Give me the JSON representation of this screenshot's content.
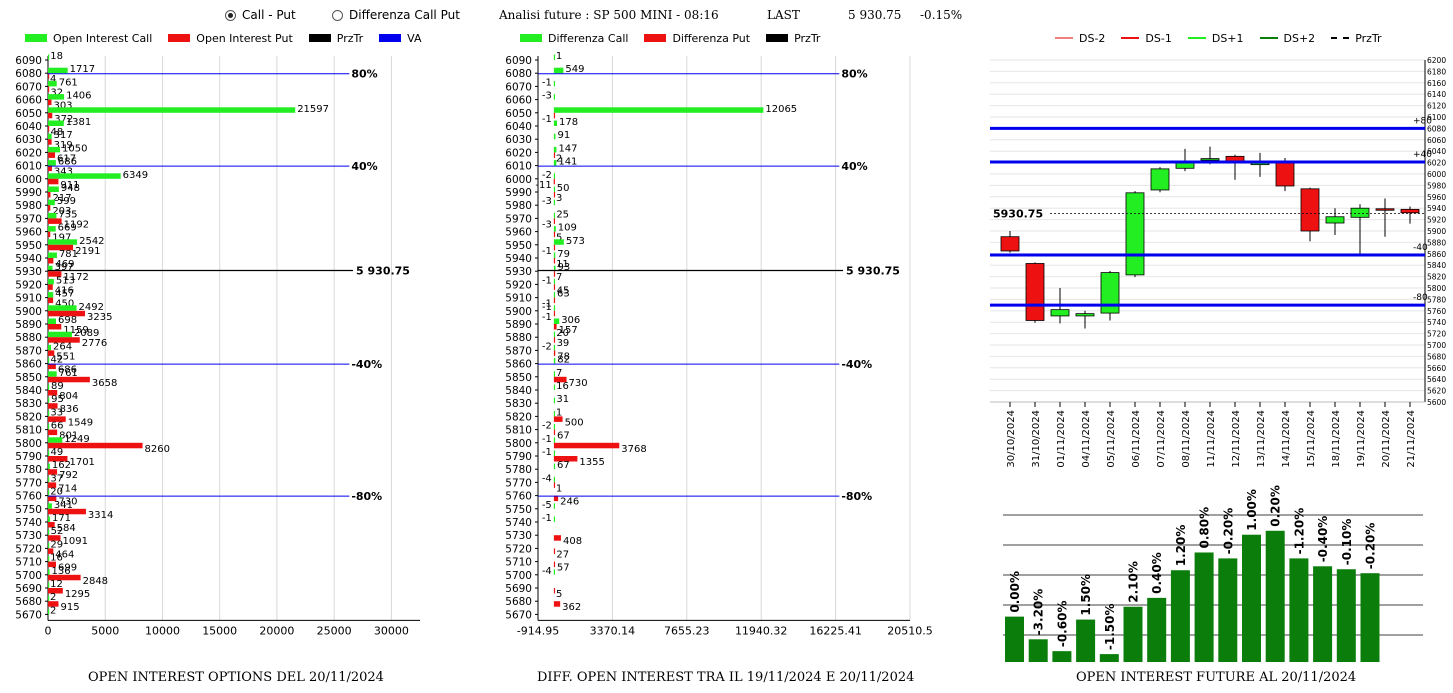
{
  "header": {
    "radio_call_put": "Call - Put",
    "radio_diff": "Differenza Call Put",
    "title": "Analisi future : SP 500 MINI - 08:16",
    "last_label": "LAST",
    "last_value": "5 930.75",
    "last_change": "-0.15%"
  },
  "colors": {
    "green": "#22ee22",
    "red": "#ee1111",
    "blue": "#0000ee",
    "dark_green": "#0a7d0a"
  },
  "legend1": [
    {
      "label": "Open Interest Call",
      "color": "#22ee22"
    },
    {
      "label": "Open Interest Put",
      "color": "#ee1111"
    },
    {
      "label": "PrzTr",
      "color": "#000000"
    },
    {
      "label": "VA",
      "color": "#0000ee"
    }
  ],
  "legend2": [
    {
      "label": "Differenza Call",
      "color": "#22ee22"
    },
    {
      "label": "Differenza Put",
      "color": "#ee1111"
    },
    {
      "label": "PrzTr",
      "color": "#000000"
    }
  ],
  "legend3": [
    {
      "label": "DS-2",
      "color": "#f08080",
      "style": "line"
    },
    {
      "label": "DS-1",
      "color": "#ee1111",
      "style": "line"
    },
    {
      "label": "DS+1",
      "color": "#22ee22",
      "style": "line"
    },
    {
      "label": "DS+2",
      "color": "#0a7d0a",
      "style": "line"
    },
    {
      "label": "PrzTr",
      "color": "#000000",
      "style": "dash"
    }
  ],
  "captions": {
    "c1": "OPEN INTEREST OPTIONS DEL 20/11/2024",
    "c2": "DIFF. OPEN INTEREST TRA IL 19/11/2024 E 20/11/2024",
    "c3": "OPEN INTEREST FUTURE AL 20/11/2024"
  },
  "chart_data": [
    {
      "type": "bar",
      "orientation": "horizontal",
      "strikes": [
        6090,
        6080,
        6070,
        6060,
        6050,
        6040,
        6030,
        6020,
        6010,
        6000,
        5990,
        5980,
        5970,
        5960,
        5950,
        5940,
        5930,
        5920,
        5910,
        5900,
        5890,
        5880,
        5870,
        5860,
        5850,
        5840,
        5830,
        5820,
        5810,
        5800,
        5790,
        5780,
        5770,
        5760,
        5750,
        5740,
        5730,
        5720,
        5710,
        5700,
        5690,
        5680,
        5670
      ],
      "series": [
        {
          "name": "Open Interest Call",
          "values": [
            18,
            1717,
            761,
            1406,
            21597,
            1381,
            317,
            1050,
            686,
            6349,
            948,
            599,
            735,
            669,
            2542,
            781,
            397,
            513,
            457,
            2492,
            698,
            2089,
            264,
            42,
            761,
            89,
            95,
            33,
            66,
            1249,
            49,
            162,
            37,
            20,
            341,
            171,
            52,
            29,
            16,
            136,
            12,
            2,
            2
          ]
        },
        {
          "name": "Open Interest Put",
          "values": [
            null,
            4,
            32,
            303,
            372,
            48,
            319,
            617,
            343,
            911,
            217,
            203,
            1192,
            197,
            2191,
            469,
            1172,
            416,
            450,
            3235,
            1159,
            2776,
            551,
            686,
            3658,
            804,
            836,
            1549,
            801,
            8260,
            1701,
            792,
            714,
            730,
            3314,
            584,
            1091,
            464,
            699,
            2848,
            1295,
            915,
            null
          ]
        }
      ],
      "price_line": {
        "strike": 5930.75,
        "label": "5 930.75"
      },
      "va_lines": [
        {
          "strike": 6080,
          "label": "80%"
        },
        {
          "strike": 6010,
          "label": "40%"
        },
        {
          "strike": 5860,
          "label": "-40%"
        },
        {
          "strike": 5760,
          "label": "-80%"
        }
      ],
      "xticks": [
        "0",
        "5000",
        "10000",
        "15000",
        "20000",
        "25000",
        "30000"
      ],
      "xlim": [
        0,
        32500
      ]
    },
    {
      "type": "bar",
      "orientation": "horizontal",
      "strikes": [
        6090,
        6080,
        6070,
        6060,
        6050,
        6040,
        6030,
        6020,
        6010,
        6000,
        5990,
        5980,
        5970,
        5960,
        5950,
        5940,
        5930,
        5920,
        5910,
        5900,
        5890,
        5880,
        5870,
        5860,
        5850,
        5840,
        5830,
        5820,
        5810,
        5800,
        5790,
        5780,
        5770,
        5760,
        5750,
        5740,
        5730,
        5720,
        5710,
        5700,
        5690,
        5680,
        5670
      ],
      "series": [
        {
          "name": "Differenza Call",
          "values": [
            1,
            549,
            -1,
            -3,
            12065,
            178,
            91,
            147,
            141,
            -2,
            50,
            -3,
            25,
            109,
            573,
            79,
            93,
            -1,
            63,
            -1,
            306,
            20,
            -2,
            82,
            7,
            16,
            31,
            1,
            -2,
            -1,
            -1,
            67,
            -4,
            null,
            -5,
            -1,
            null,
            null,
            null,
            -4,
            null,
            null,
            null
          ]
        },
        {
          "name": "Differenza Put",
          "values": [
            null,
            null,
            null,
            null,
            -1,
            null,
            null,
            2,
            null,
            -11,
            3,
            null,
            -3,
            5,
            -1,
            11,
            7,
            45,
            -1,
            -1,
            157,
            39,
            78,
            null,
            730,
            null,
            null,
            500,
            67,
            3768,
            1355,
            null,
            1,
            246,
            null,
            null,
            408,
            27,
            57,
            null,
            5,
            362,
            null
          ]
        }
      ],
      "price_line": {
        "strike": 5930.75,
        "label": "5 930.75"
      },
      "va_lines": [
        {
          "strike": 6080,
          "label": "80%"
        },
        {
          "strike": 6010,
          "label": "40%"
        },
        {
          "strike": 5860,
          "label": "-40%"
        },
        {
          "strike": 5760,
          "label": "-80%"
        }
      ],
      "xticks": [
        "-914.95",
        "3370.14",
        "7655.23",
        "11940.32",
        "16225.41",
        "20510.5"
      ],
      "xlim": [
        -914.95,
        20510.5
      ]
    },
    {
      "type": "candlestick",
      "dates": [
        "30/10/2024",
        "31/10/2024",
        "01/11/2024",
        "04/11/2024",
        "05/11/2024",
        "06/11/2024",
        "07/11/2024",
        "08/11/2024",
        "11/11/2024",
        "12/11/2024",
        "13/11/2024",
        "14/11/2024",
        "15/11/2024",
        "18/11/2024",
        "19/11/2024",
        "20/11/2024",
        "21/11/2024"
      ],
      "ohlc": [
        {
          "o": 5890,
          "h": 5900,
          "l": 5862,
          "c": 5865
        },
        {
          "o": 5843,
          "h": 5845,
          "l": 5739,
          "c": 5743
        },
        {
          "o": 5751,
          "h": 5800,
          "l": 5738,
          "c": 5762
        },
        {
          "o": 5751,
          "h": 5760,
          "l": 5729,
          "c": 5755
        },
        {
          "o": 5756,
          "h": 5830,
          "l": 5743,
          "c": 5827
        },
        {
          "o": 5823,
          "h": 5970,
          "l": 5819,
          "c": 5967
        },
        {
          "o": 5972,
          "h": 6012,
          "l": 5968,
          "c": 6009
        },
        {
          "o": 6010,
          "h": 6044,
          "l": 6005,
          "c": 6022
        },
        {
          "o": 6027,
          "h": 6048,
          "l": 6017,
          "c": 6027
        },
        {
          "o": 6031,
          "h": 6034,
          "l": 5990,
          "c": 6021
        },
        {
          "o": 6017,
          "h": 6037,
          "l": 5995,
          "c": 6019
        },
        {
          "o": 6020,
          "h": 6028,
          "l": 5970,
          "c": 5979
        },
        {
          "o": 5974,
          "h": 5976,
          "l": 5882,
          "c": 5900
        },
        {
          "o": 5914,
          "h": 5940,
          "l": 5893,
          "c": 5925
        },
        {
          "o": 5924,
          "h": 5947,
          "l": 5860,
          "c": 5940
        },
        {
          "o": 5939,
          "h": 5957,
          "l": 5890,
          "c": 5938
        },
        {
          "o": 5938,
          "h": 5943,
          "l": 5913,
          "c": 5932
        }
      ],
      "price_line": {
        "value": 5930.75,
        "label": "5930.75"
      },
      "levels": [
        {
          "value": 6080,
          "label": "+80"
        },
        {
          "value": 6021,
          "label": "+40"
        },
        {
          "value": 5858,
          "label": "-40"
        },
        {
          "value": 5770,
          "label": "-80"
        }
      ],
      "ylim": [
        5600,
        6200
      ],
      "yticks_step": 20
    },
    {
      "type": "bar",
      "values": [
        46,
        23,
        11,
        43,
        8,
        56,
        65,
        93,
        111,
        105,
        129,
        133,
        105,
        97,
        94,
        90
      ],
      "labels": [
        "0.00%",
        "-3.20%",
        "-0.60%",
        "1.50%",
        "-1.50%",
        "2.10%",
        "0.40%",
        "1.20%",
        "0.80%",
        "-0.20%",
        "1.00%",
        "0.20%",
        "-1.20%",
        "-0.40%",
        "-0.10%",
        "-0.20%"
      ],
      "ylim": [
        0,
        150
      ]
    }
  ]
}
